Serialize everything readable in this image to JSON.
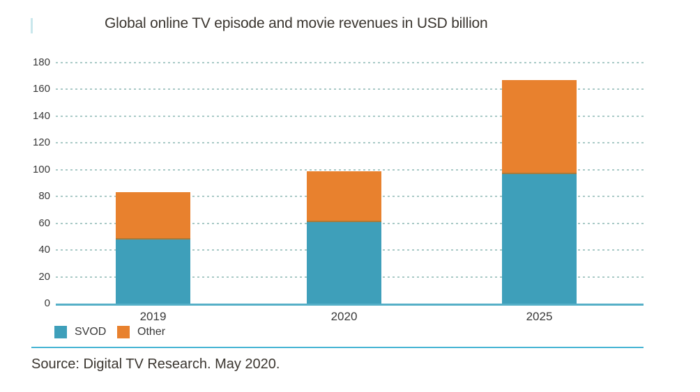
{
  "title": "Global online TV episode and movie revenues in USD billion",
  "source": "Source: Digital TV Research. May 2020.",
  "colors": {
    "svod": "#3E9FBA",
    "other": "#E8812E",
    "axis_line": "#55AFC7",
    "gridline": "#A8C9C6",
    "divider": "#46B4D3",
    "title_text": "#3A352F",
    "label_text": "#383838",
    "accent_mark": "#C9E7EC"
  },
  "legend": [
    {
      "label": "SVOD",
      "color": "#3E9FBA"
    },
    {
      "label": "Other",
      "color": "#E8812E"
    }
  ],
  "chart_data": {
    "type": "bar",
    "stacked": true,
    "title": "Global online TV episode and movie revenues in USD billion",
    "categories": [
      "2019",
      "2020",
      "2025"
    ],
    "series": [
      {
        "name": "SVOD",
        "color": "#3E9FBA",
        "values": [
          48,
          61,
          97
        ]
      },
      {
        "name": "Other",
        "color": "#E8812E",
        "values": [
          35,
          38,
          70
        ]
      }
    ],
    "totals": [
      83,
      99,
      167
    ],
    "xlabel": "",
    "ylabel": "",
    "ylim": [
      0,
      180
    ],
    "yticks": [
      0,
      20,
      40,
      60,
      80,
      100,
      120,
      140,
      160,
      180
    ],
    "grid": "horizontal-dashed",
    "legend_position": "bottom-left",
    "unit": "USD billion"
  }
}
